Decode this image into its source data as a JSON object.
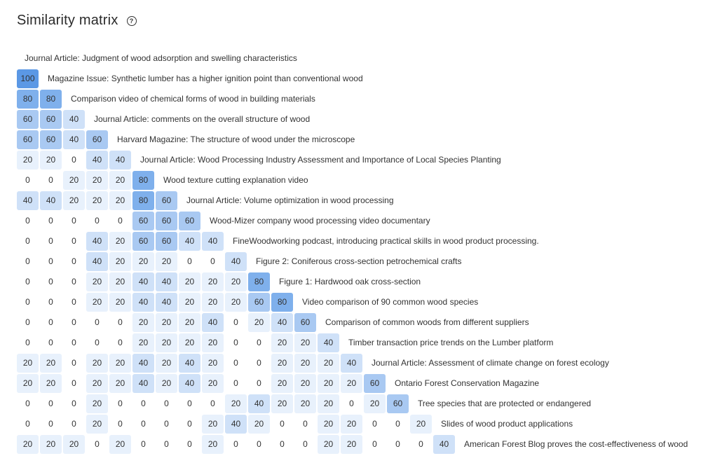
{
  "header": {
    "title": "Similarity matrix",
    "help_icon": "question-circle-icon"
  },
  "colors": {
    "0": "#ffffff",
    "20": "#e8f1fc",
    "40": "#cfe1f8",
    "60": "#a9c9f2",
    "80": "#7fb0ec",
    "100": "#5b98e5"
  },
  "chart_data": {
    "type": "heatmap",
    "title": "Similarity matrix",
    "items": [
      "Journal Article: Judgment of wood adsorption and swelling characteristics",
      "Magazine Issue: Synthetic lumber has a higher ignition point than conventional wood",
      "Comparison video of chemical forms of wood in building materials",
      "Journal Article: comments on the overall structure of wood",
      "Harvard Magazine: The structure of wood under the microscope",
      "Journal Article: Wood Processing Industry Assessment and Importance of Local Species Planting",
      "Wood texture cutting explanation video",
      "Journal Article: Volume optimization in wood processing",
      "Wood-Mizer company wood processing video documentary",
      "FineWoodworking podcast, introducing practical skills in wood product processing.",
      "Figure 2: Coniferous cross-section petrochemical crafts",
      "Figure 1: Hardwood oak cross-section",
      "Video comparison of 90 common wood species",
      "Comparison of common woods from different suppliers",
      "Timber transaction price trends on the Lumber platform",
      "Journal Article: Assessment of climate change on forest ecology",
      "Ontario Forest Conservation Magazine",
      "Tree species that are protected or endangered",
      "Slides of wood product applications",
      "American Forest Blog proves the cost-effectiveness of wood"
    ],
    "values": [
      [],
      [
        100
      ],
      [
        80,
        80
      ],
      [
        60,
        60,
        40
      ],
      [
        60,
        60,
        40,
        60
      ],
      [
        20,
        20,
        0,
        40,
        40
      ],
      [
        0,
        0,
        20,
        20,
        20,
        80
      ],
      [
        40,
        40,
        20,
        20,
        20,
        80,
        60
      ],
      [
        0,
        0,
        0,
        0,
        0,
        60,
        60,
        60
      ],
      [
        0,
        0,
        0,
        40,
        20,
        60,
        60,
        40,
        40
      ],
      [
        0,
        0,
        0,
        40,
        20,
        20,
        20,
        0,
        0,
        40
      ],
      [
        0,
        0,
        0,
        20,
        20,
        40,
        40,
        20,
        20,
        20,
        80
      ],
      [
        0,
        0,
        0,
        20,
        20,
        40,
        40,
        20,
        20,
        20,
        60,
        80
      ],
      [
        0,
        0,
        0,
        0,
        0,
        20,
        20,
        20,
        40,
        0,
        20,
        40,
        60
      ],
      [
        0,
        0,
        0,
        0,
        0,
        20,
        20,
        20,
        20,
        0,
        0,
        20,
        20,
        40
      ],
      [
        20,
        20,
        0,
        20,
        20,
        40,
        20,
        40,
        20,
        0,
        0,
        20,
        20,
        20,
        40
      ],
      [
        20,
        20,
        0,
        20,
        20,
        40,
        20,
        40,
        20,
        0,
        0,
        20,
        20,
        20,
        20,
        60
      ],
      [
        0,
        0,
        0,
        20,
        0,
        0,
        0,
        0,
        0,
        20,
        40,
        20,
        20,
        20,
        0,
        20,
        60
      ],
      [
        0,
        0,
        0,
        20,
        0,
        0,
        0,
        0,
        20,
        40,
        20,
        0,
        0,
        20,
        20,
        0,
        0,
        20
      ],
      [
        20,
        20,
        20,
        0,
        20,
        0,
        0,
        0,
        20,
        0,
        0,
        0,
        0,
        20,
        20,
        0,
        0,
        0,
        40
      ]
    ]
  }
}
